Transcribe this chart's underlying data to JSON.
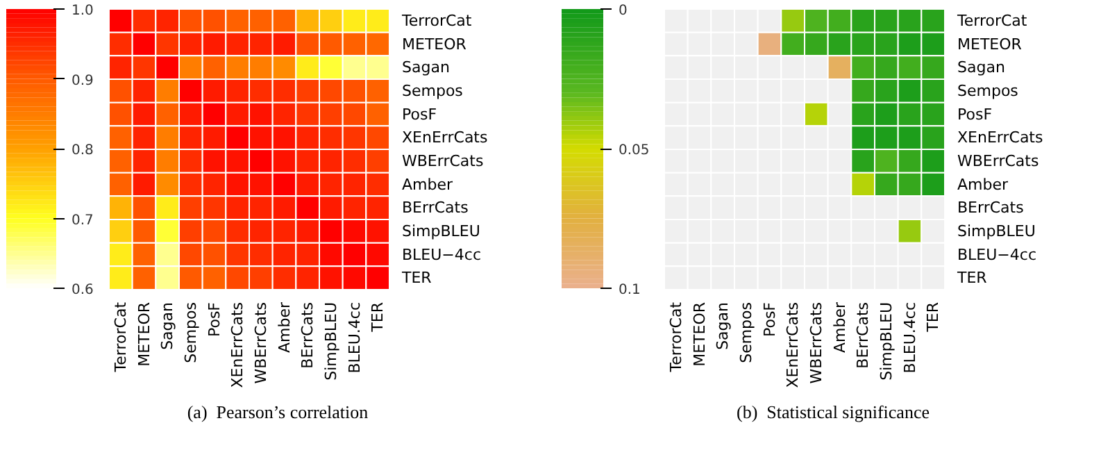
{
  "chart_data": [
    {
      "type": "heatmap",
      "title": "(a)  Pearson’s correlation",
      "categories": [
        "TerrorCat",
        "METEOR",
        "Sagan",
        "Sempos",
        "PosF",
        "XEnErrCats",
        "WBErrCats",
        "Amber",
        "BErrCats",
        "SimpBLEU",
        "BLEU.4cc",
        "TER"
      ],
      "y_categories": [
        "TerrorCat",
        "METEOR",
        "Sagan",
        "Sempos",
        "PosF",
        "XEnErrCats",
        "WBErrCats",
        "Amber",
        "BErrCats",
        "SimpBLEU",
        "BLEU−4cc",
        "TER"
      ],
      "cells": [
        [
          1.0,
          0.95,
          0.96,
          0.91,
          0.91,
          0.89,
          0.89,
          0.89,
          0.78,
          0.75,
          0.72,
          0.72
        ],
        [
          0.95,
          1.0,
          0.94,
          0.96,
          0.97,
          0.96,
          0.96,
          0.97,
          0.91,
          0.9,
          0.89,
          0.88
        ],
        [
          0.96,
          0.94,
          1.0,
          0.85,
          0.89,
          0.85,
          0.85,
          0.83,
          0.72,
          0.69,
          0.65,
          0.65
        ],
        [
          0.91,
          0.96,
          0.85,
          1.0,
          0.97,
          0.96,
          0.95,
          0.95,
          0.93,
          0.92,
          0.91,
          0.89
        ],
        [
          0.91,
          0.97,
          0.89,
          0.97,
          1.0,
          0.97,
          0.98,
          0.96,
          0.94,
          0.93,
          0.92,
          0.89
        ],
        [
          0.89,
          0.96,
          0.85,
          0.96,
          0.97,
          1.0,
          0.98,
          0.98,
          0.96,
          0.95,
          0.94,
          0.92
        ],
        [
          0.89,
          0.96,
          0.85,
          0.95,
          0.98,
          0.98,
          1.0,
          0.98,
          0.96,
          0.96,
          0.95,
          0.93
        ],
        [
          0.89,
          0.97,
          0.83,
          0.95,
          0.96,
          0.98,
          0.98,
          1.0,
          0.97,
          0.96,
          0.96,
          0.95
        ],
        [
          0.78,
          0.91,
          0.72,
          0.93,
          0.94,
          0.96,
          0.96,
          0.97,
          1.0,
          0.97,
          0.96,
          0.96
        ],
        [
          0.75,
          0.9,
          0.69,
          0.93,
          0.92,
          0.95,
          0.96,
          0.96,
          0.97,
          1.0,
          0.99,
          0.98
        ],
        [
          0.72,
          0.89,
          0.65,
          0.92,
          0.91,
          0.94,
          0.95,
          0.96,
          0.96,
          0.99,
          1.0,
          0.99
        ],
        [
          0.72,
          0.89,
          0.65,
          0.9,
          0.89,
          0.92,
          0.93,
          0.95,
          0.96,
          0.98,
          0.99,
          1.0
        ]
      ],
      "clim": [
        0.6,
        1.0
      ],
      "cticks": [
        0.6,
        0.7,
        0.8,
        0.9,
        {
          "value": 1,
          "label": "1.0"
        }
      ]
    },
    {
      "type": "heatmap",
      "title": "(b)  Statistical significance",
      "categories": [
        "TerrorCat",
        "METEOR",
        "Sagan",
        "Sempos",
        "PosF",
        "XEnErrCats",
        "WBErrCats",
        "Amber",
        "BErrCats",
        "SimpBLEU",
        "BLEU.4cc",
        "TER"
      ],
      "y_categories": [
        "TerrorCat",
        "METEOR",
        "Sagan",
        "Sempos",
        "PosF",
        "XEnErrCats",
        "WBErrCats",
        "Amber",
        "BErrCats",
        "SimpBLEU",
        "BLEU−4cc",
        "TER"
      ],
      "cells": [
        [
          null,
          null,
          null,
          null,
          null,
          0.04,
          0.025,
          0.02,
          0.01,
          0.01,
          0.01,
          0.01
        ],
        [
          null,
          null,
          null,
          null,
          0.095,
          0.02,
          0.015,
          0.01,
          0.01,
          0.01,
          0.005,
          0.005
        ],
        [
          null,
          null,
          null,
          null,
          null,
          null,
          null,
          0.085,
          0.02,
          0.015,
          0.02,
          0.015
        ],
        [
          null,
          null,
          null,
          null,
          null,
          null,
          null,
          null,
          0.015,
          0.01,
          0.005,
          0.01
        ],
        [
          null,
          null,
          null,
          null,
          null,
          null,
          0.045,
          null,
          0.01,
          0.005,
          0.01,
          0.01
        ],
        [
          null,
          null,
          null,
          null,
          null,
          null,
          null,
          null,
          0.005,
          0.005,
          0.005,
          0.01
        ],
        [
          null,
          null,
          null,
          null,
          null,
          null,
          null,
          null,
          0.01,
          0.025,
          0.015,
          0.005
        ],
        [
          null,
          null,
          null,
          null,
          null,
          null,
          null,
          null,
          0.045,
          0.015,
          0.015,
          0.005
        ],
        [
          null,
          null,
          null,
          null,
          null,
          null,
          null,
          null,
          null,
          null,
          null,
          null
        ],
        [
          null,
          null,
          null,
          null,
          null,
          null,
          null,
          null,
          null,
          null,
          0.04,
          null
        ],
        [
          null,
          null,
          null,
          null,
          null,
          null,
          null,
          null,
          null,
          null,
          null,
          null
        ],
        [
          null,
          null,
          null,
          null,
          null,
          null,
          null,
          null,
          null,
          null,
          null,
          null
        ]
      ],
      "clim": [
        0.1,
        0
      ],
      "cticks": [
        0,
        0.05,
        0.1
      ]
    }
  ]
}
